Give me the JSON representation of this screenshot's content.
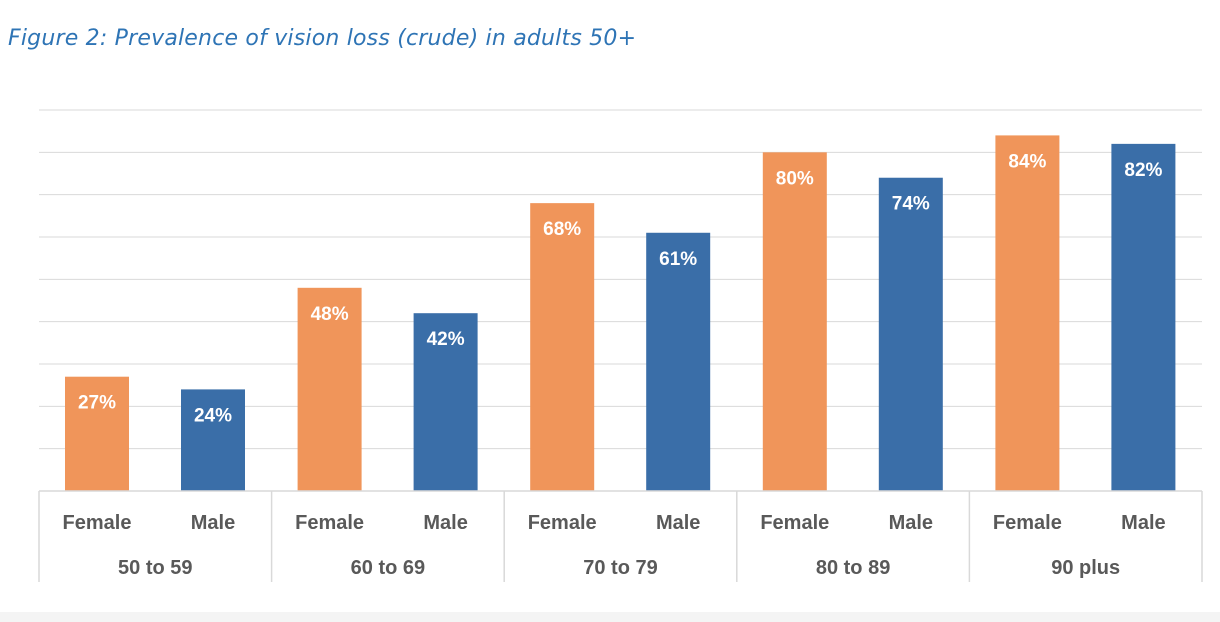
{
  "title": "Figure 2: Prevalence of vision loss (crude) in adults 50+",
  "chart_data": {
    "type": "bar",
    "title": "Figure 2: Prevalence of vision loss (crude) in adults 50+",
    "xlabel": "",
    "ylabel": "",
    "ylim": [
      0,
      90
    ],
    "grid": true,
    "groups": [
      "50 to 59",
      "60 to 69",
      "70 to 79",
      "80 to 89",
      "90 plus"
    ],
    "bars": [
      {
        "group": "50 to 59",
        "label": "Female",
        "value": 27,
        "text": "27%"
      },
      {
        "group": "50 to 59",
        "label": "Male",
        "value": 24,
        "text": "24%"
      },
      {
        "group": "60 to 69",
        "label": "Female",
        "value": 48,
        "text": "48%"
      },
      {
        "group": "60 to 69",
        "label": "Male",
        "value": 42,
        "text": "42%"
      },
      {
        "group": "70 to 79",
        "label": "Female",
        "value": 68,
        "text": "68%"
      },
      {
        "group": "70 to 79",
        "label": "Male",
        "value": 61,
        "text": "61%"
      },
      {
        "group": "80 to 89",
        "label": "Female",
        "value": 80,
        "text": "80%"
      },
      {
        "group": "80 to 89",
        "label": "Male",
        "value": 74,
        "text": "74%"
      },
      {
        "group": "90 plus",
        "label": "Female",
        "value": 84,
        "text": "84%"
      },
      {
        "group": "90 plus",
        "label": "Male",
        "value": 82,
        "text": "82%"
      }
    ],
    "colors": {
      "Female": "#f0955a",
      "Male": "#3a6ea8",
      "grid": "#d9d9d9"
    }
  }
}
